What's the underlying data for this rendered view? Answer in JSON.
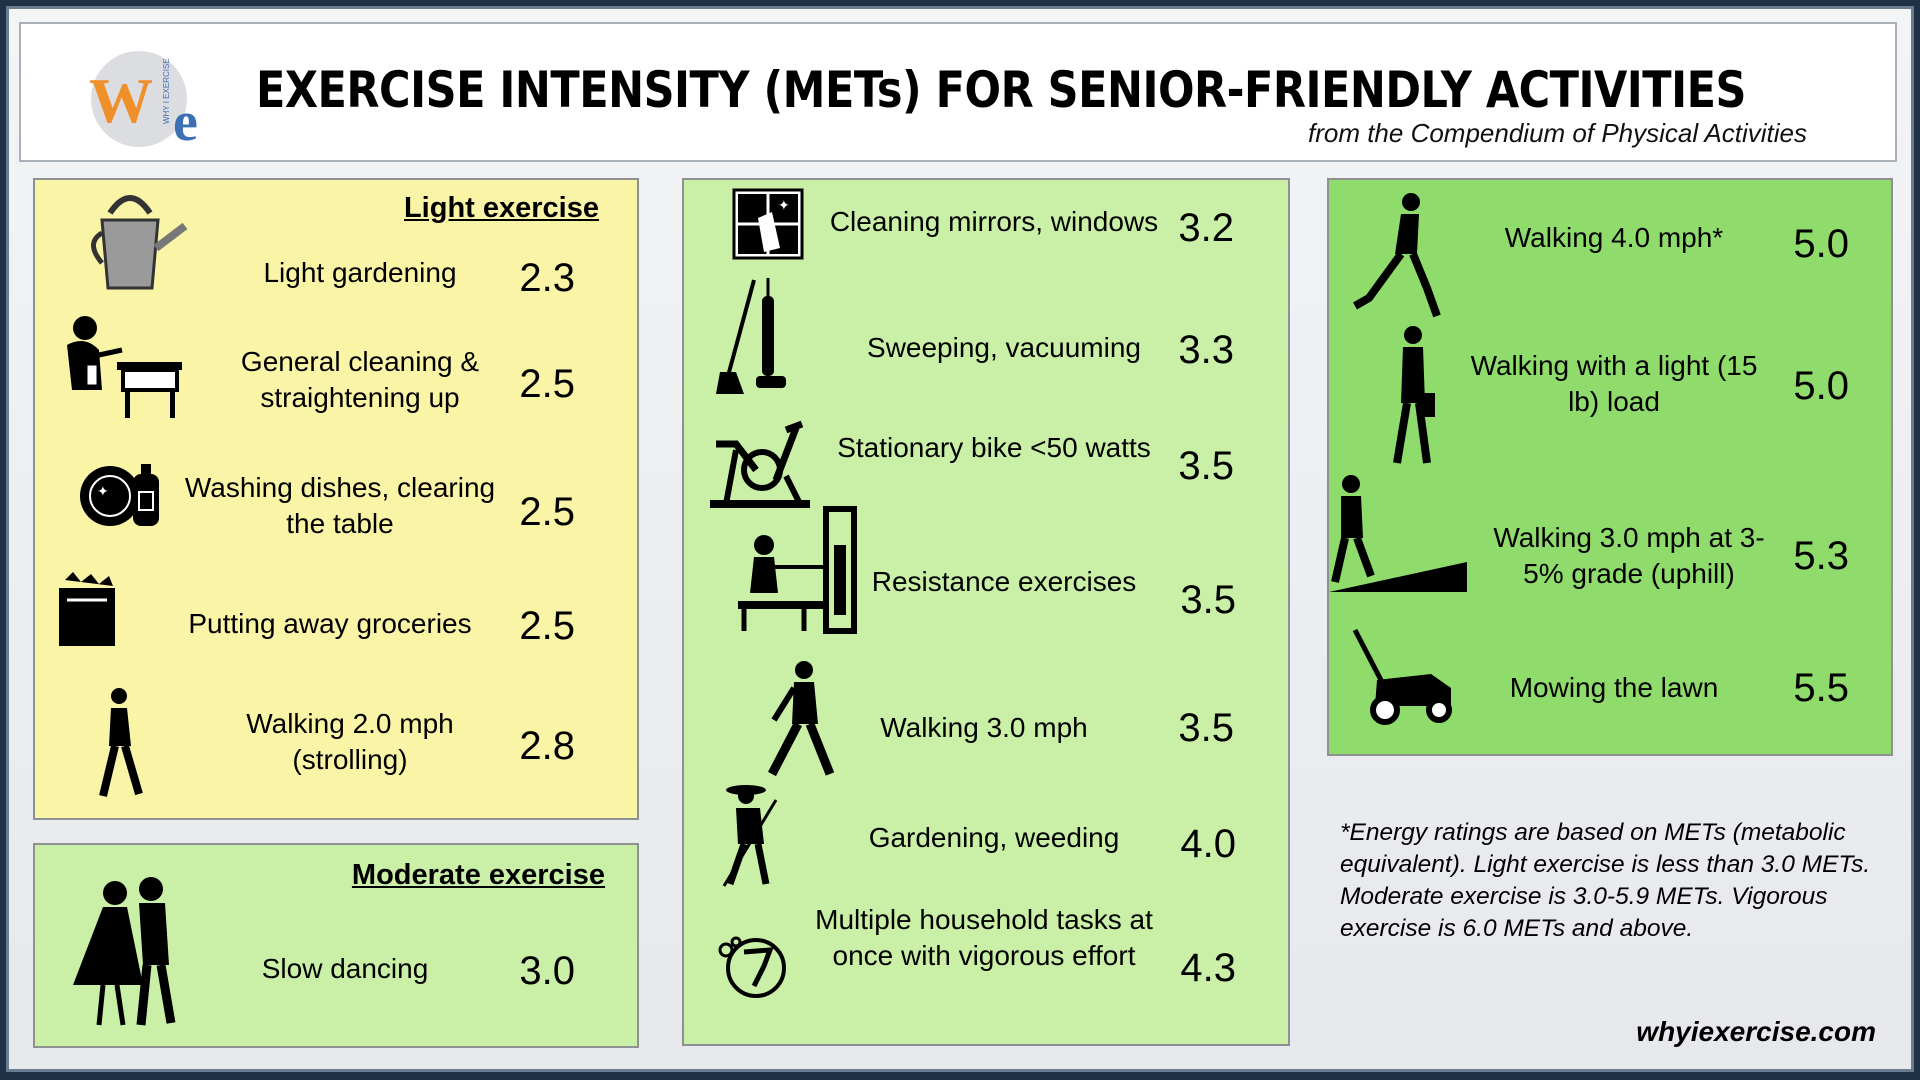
{
  "header": {
    "logo_text": "We",
    "logo_small": "WHY I EXERCISE",
    "title": "EXERCISE INTENSITY (METs) FOR SENIOR-FRIENDLY ACTIVITIES",
    "subtitle": "from the Compendium of Physical Activities"
  },
  "light": {
    "heading": "Light exercise",
    "items": [
      {
        "label": "Light gardening",
        "value": "2.3",
        "icon": "watering-can-icon"
      },
      {
        "label": "General cleaning & straightening up",
        "value": "2.5",
        "icon": "cleaning-person-icon"
      },
      {
        "label": "Washing dishes, clearing the table",
        "value": "2.5",
        "icon": "dishes-icon"
      },
      {
        "label": "Putting away groceries",
        "value": "2.5",
        "icon": "grocery-bag-icon"
      },
      {
        "label": "Walking 2.0 mph (strolling)",
        "value": "2.8",
        "icon": "strolling-person-icon"
      }
    ]
  },
  "moderate_a": {
    "heading": "Moderate exercise",
    "items": [
      {
        "label": "Slow dancing",
        "value": "3.0",
        "icon": "dancing-couple-icon"
      }
    ]
  },
  "moderate_b": {
    "items": [
      {
        "label": "Cleaning mirrors, windows",
        "value": "3.2",
        "icon": "window-cleaning-icon"
      },
      {
        "label": "Sweeping, vacuuming",
        "value": "3.3",
        "icon": "broom-vacuum-icon"
      },
      {
        "label": "Stationary bike <50 watts",
        "value": "3.5",
        "icon": "stationary-bike-icon"
      },
      {
        "label": "Resistance exercises",
        "value": "3.5",
        "icon": "weight-machine-icon"
      },
      {
        "label": "Walking 3.0 mph",
        "value": "3.5",
        "icon": "walking-person-icon"
      },
      {
        "label": "Gardening, weeding",
        "value": "4.0",
        "icon": "gardener-icon"
      },
      {
        "label": "Multiple household tasks at once with vigorous effort",
        "value": "4.3",
        "icon": "multitask-icon"
      }
    ]
  },
  "moderate_c": {
    "items": [
      {
        "label": "Walking 4.0 mph*",
        "value": "5.0",
        "icon": "fast-walker-icon"
      },
      {
        "label": "Walking with a light (15 lb) load",
        "value": "5.0",
        "icon": "walker-with-bag-icon"
      },
      {
        "label": "Walking 3.0 mph at 3-5% grade (uphill)",
        "value": "5.3",
        "icon": "uphill-walker-icon"
      },
      {
        "label": "Mowing the lawn",
        "value": "5.5",
        "icon": "lawn-mower-icon"
      }
    ]
  },
  "footnote": "*Energy ratings are based on METs (metabolic equivalent). Light exercise is less than 3.0 METs.  Moderate exercise is 3.0-5.9 METs. Vigorous exercise is 6.0 METs and above.",
  "website": "whyiexercise.com",
  "colors": {
    "light_bg": "#faf4a6",
    "moderate_bg": "#c9f0a6",
    "moderate_dark_bg": "#8fdb6b",
    "logo_orange": "#f0902b",
    "logo_blue": "#3c6fb4"
  }
}
